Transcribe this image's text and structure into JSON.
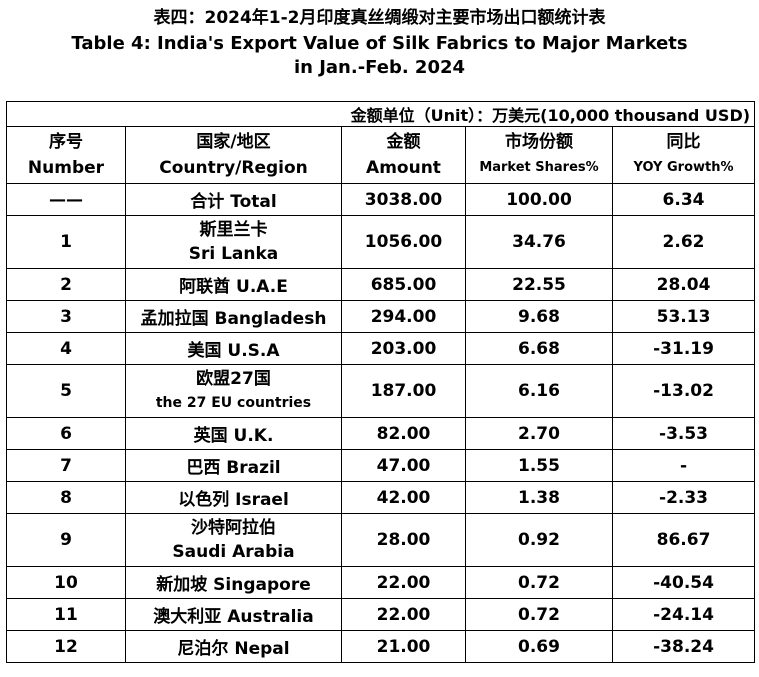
{
  "title": {
    "cn": "表四：2024年1-2月印度真丝绸缎对主要市场出口额统计表",
    "en_line1": "Table 4: India's Export Value of Silk Fabrics to Major Markets",
    "en_line2": "in Jan.-Feb. 2024"
  },
  "unit": "金额单位（Unit）：万美元(10,000 thousand USD)",
  "headers": {
    "number_cn": "序号",
    "number_en": "Number",
    "region_cn": "国家/地区",
    "region_en": "Country/Region",
    "amount_cn": "金额",
    "amount_en": "Amount",
    "share_cn": "市场份额",
    "share_en": "Market Shares%",
    "yoy_cn": "同比",
    "yoy_en": "YOY Growth%"
  },
  "total": {
    "number": "——",
    "region": "合计 Total",
    "amount": "3038.00",
    "share": "100.00",
    "yoy": "6.34"
  },
  "rows": [
    {
      "number": "1",
      "region_line1": "斯里兰卡",
      "region_line2": "Sri Lanka",
      "amount": "1056.00",
      "share": "34.76",
      "yoy": "2.62"
    },
    {
      "number": "2",
      "region": "阿联酋 U.A.E",
      "amount": "685.00",
      "share": "22.55",
      "yoy": "28.04"
    },
    {
      "number": "3",
      "region": "孟加拉国 Bangladesh",
      "amount": "294.00",
      "share": "9.68",
      "yoy": "53.13"
    },
    {
      "number": "4",
      "region": "美国 U.S.A",
      "amount": "203.00",
      "share": "6.68",
      "yoy": "-31.19"
    },
    {
      "number": "5",
      "region_line1": "欧盟27国",
      "region_line2": "the 27 EU countries",
      "amount": "187.00",
      "share": "6.16",
      "yoy": "-13.02"
    },
    {
      "number": "6",
      "region": "英国 U.K.",
      "amount": "82.00",
      "share": "2.70",
      "yoy": "-3.53"
    },
    {
      "number": "7",
      "region": "巴西 Brazil",
      "amount": "47.00",
      "share": "1.55",
      "yoy": "-"
    },
    {
      "number": "8",
      "region": "以色列 Israel",
      "amount": "42.00",
      "share": "1.38",
      "yoy": "-2.33"
    },
    {
      "number": "9",
      "region_line1": "沙特阿拉伯",
      "region_line2": "Saudi Arabia",
      "amount": "28.00",
      "share": "0.92",
      "yoy": "86.67"
    },
    {
      "number": "10",
      "region": "新加坡 Singapore",
      "amount": "22.00",
      "share": "0.72",
      "yoy": "-40.54"
    },
    {
      "number": "11",
      "region": "澳大利亚 Australia",
      "amount": "22.00",
      "share": "0.72",
      "yoy": "-24.14"
    },
    {
      "number": "12",
      "region": "尼泊尔 Nepal",
      "amount": "21.00",
      "share": "0.69",
      "yoy": "-38.24"
    }
  ]
}
